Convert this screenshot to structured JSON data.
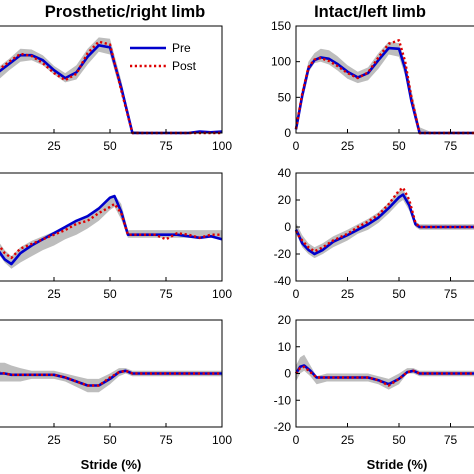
{
  "chart_data": [
    {
      "type": "line",
      "title": "Prosthetic/right limb",
      "xlabel": "",
      "ylabel": "",
      "xlim": [
        0,
        100
      ],
      "ylim": [
        0,
        150
      ],
      "xticks": [
        25,
        50,
        75,
        100
      ],
      "yticks": [],
      "legend": {
        "placement": "top-right",
        "entries": [
          "Pre",
          "Post"
        ]
      },
      "band": {
        "x": [
          0,
          5,
          10,
          15,
          20,
          25,
          30,
          35,
          40,
          45,
          50,
          55,
          60,
          65,
          70,
          75,
          80,
          85,
          90,
          95,
          100
        ],
        "lower": [
          74,
          88,
          100,
          102,
          95,
          82,
          71,
          75,
          96,
          114,
          110,
          55,
          0,
          0,
          0,
          0,
          0,
          0,
          0,
          0,
          0
        ],
        "upper": [
          92,
          104,
          118,
          117,
          109,
          94,
          84,
          95,
          118,
          134,
          132,
          74,
          3,
          2,
          2,
          2,
          2,
          2,
          2,
          2,
          2
        ]
      },
      "series": [
        {
          "name": "Pre",
          "x": [
            0,
            5,
            10,
            15,
            20,
            25,
            30,
            35,
            40,
            45,
            50,
            55,
            60,
            65,
            70,
            75,
            80,
            85,
            90,
            95,
            100
          ],
          "values": [
            85,
            97,
            109,
            109,
            102,
            88,
            77,
            85,
            107,
            123,
            120,
            64,
            0,
            0,
            0,
            0,
            0,
            0,
            2,
            1,
            2
          ]
        },
        {
          "name": "Post",
          "x": [
            0,
            5,
            10,
            15,
            20,
            25,
            30,
            35,
            40,
            45,
            50,
            55,
            60,
            65,
            70,
            75,
            80,
            85,
            90,
            95,
            100
          ],
          "values": [
            88,
            100,
            111,
            108,
            98,
            84,
            74,
            83,
            112,
            128,
            124,
            60,
            0,
            0,
            0,
            0,
            0,
            0,
            0,
            0,
            0
          ]
        }
      ]
    },
    {
      "type": "line",
      "title": "Intact/left limb",
      "xlabel": "",
      "ylabel": "",
      "xlim": [
        0,
        100
      ],
      "ylim": [
        0,
        150
      ],
      "xticks": [
        0,
        25,
        50,
        75
      ],
      "yticks": [
        0,
        50,
        100,
        150
      ],
      "band": {
        "x": [
          0,
          3,
          6,
          9,
          12,
          16,
          20,
          25,
          30,
          35,
          40,
          45,
          50,
          53,
          56,
          60,
          65,
          70,
          75,
          80,
          85,
          90,
          95,
          100
        ],
        "lower": [
          3,
          45,
          85,
          98,
          100,
          96,
          88,
          76,
          70,
          74,
          90,
          110,
          107,
          80,
          40,
          0,
          0,
          0,
          0,
          0,
          0,
          0,
          0,
          0
        ],
        "upper": [
          12,
          62,
          100,
          112,
          118,
          116,
          108,
          95,
          86,
          92,
          112,
          128,
          126,
          100,
          60,
          8,
          2,
          2,
          2,
          2,
          2,
          2,
          2,
          2
        ]
      },
      "series": [
        {
          "name": "Pre",
          "x": [
            0,
            3,
            6,
            9,
            12,
            16,
            20,
            25,
            30,
            35,
            40,
            45,
            50,
            53,
            56,
            60,
            65,
            70,
            75,
            80,
            85,
            90,
            95,
            100
          ],
          "values": [
            5,
            52,
            90,
            102,
            106,
            104,
            97,
            86,
            78,
            84,
            102,
            119,
            118,
            90,
            45,
            0,
            0,
            0,
            0,
            0,
            0,
            0,
            0,
            0
          ]
        },
        {
          "name": "Post",
          "x": [
            0,
            3,
            6,
            9,
            12,
            16,
            20,
            25,
            30,
            35,
            40,
            45,
            50,
            53,
            56,
            60,
            65,
            70,
            75,
            80,
            85,
            90,
            95,
            100
          ],
          "values": [
            6,
            55,
            92,
            103,
            105,
            101,
            94,
            84,
            77,
            85,
            106,
            125,
            130,
            100,
            50,
            0,
            0,
            0,
            0,
            0,
            0,
            0,
            0,
            0
          ]
        }
      ]
    },
    {
      "type": "line",
      "title": "",
      "xlabel": "",
      "ylabel": "",
      "xlim": [
        0,
        100
      ],
      "ylim": [
        -30,
        40
      ],
      "xticks": [
        25,
        50,
        75,
        100
      ],
      "yticks": [],
      "band": {
        "x": [
          0,
          3,
          6,
          10,
          15,
          20,
          25,
          30,
          35,
          40,
          45,
          50,
          52,
          55,
          58,
          60,
          65,
          70,
          75,
          80,
          85,
          90,
          95,
          100
        ],
        "lower": [
          -12,
          -18,
          -22,
          -18,
          -14,
          -10,
          -7,
          -3,
          0,
          4,
          9,
          16,
          18,
          10,
          -2,
          -2,
          -2,
          -2,
          -2,
          -2,
          -2,
          -2,
          -2,
          -2
        ],
        "upper": [
          -4,
          -10,
          -14,
          -8,
          -4,
          -1,
          2,
          5,
          9,
          13,
          18,
          25,
          26,
          20,
          3,
          3,
          3,
          3,
          3,
          3,
          3,
          3,
          3,
          3
        ]
      },
      "series": [
        {
          "name": "Pre",
          "x": [
            0,
            3,
            6,
            10,
            15,
            20,
            25,
            30,
            35,
            40,
            45,
            50,
            52,
            55,
            58,
            60,
            65,
            70,
            75,
            80,
            85,
            90,
            95,
            100
          ],
          "values": [
            -10,
            -16,
            -19,
            -12,
            -7,
            -3,
            1,
            5,
            9,
            12,
            17,
            24,
            25,
            15,
            0,
            0,
            0,
            0,
            0,
            0,
            -1,
            -2,
            -1,
            -3
          ]
        },
        {
          "name": "Post",
          "x": [
            0,
            3,
            6,
            10,
            15,
            20,
            25,
            30,
            35,
            40,
            45,
            50,
            52,
            55,
            58,
            60,
            65,
            70,
            75,
            80,
            85,
            90,
            95,
            100
          ],
          "values": [
            -6,
            -12,
            -15,
            -9,
            -6,
            -3,
            0,
            3,
            7,
            9,
            14,
            18,
            20,
            14,
            0,
            0,
            0,
            0,
            -3,
            1,
            0,
            -2,
            0,
            0
          ]
        }
      ]
    },
    {
      "type": "line",
      "title": "",
      "xlabel": "",
      "ylabel": "",
      "xlim": [
        0,
        100
      ],
      "ylim": [
        -40,
        40
      ],
      "xticks": [
        0,
        25,
        50,
        75
      ],
      "yticks": [
        -40,
        -20,
        0,
        20,
        40
      ],
      "band": {
        "x": [
          0,
          1,
          3,
          6,
          9,
          13,
          18,
          25,
          30,
          35,
          40,
          45,
          50,
          52,
          55,
          58,
          60,
          65,
          70,
          75,
          80,
          85,
          90,
          95,
          100
        ],
        "lower": [
          -5,
          -8,
          -15,
          -20,
          -23,
          -20,
          -15,
          -10,
          -5,
          -2,
          3,
          10,
          18,
          20,
          12,
          0,
          -2,
          -2,
          -2,
          -2,
          -2,
          -2,
          -2,
          -2,
          -2
        ],
        "upper": [
          3,
          0,
          -6,
          -12,
          -15,
          -12,
          -7,
          -2,
          2,
          6,
          11,
          18,
          27,
          28,
          20,
          4,
          2,
          2,
          2,
          2,
          2,
          2,
          2,
          2,
          2
        ]
      },
      "series": [
        {
          "name": "Pre",
          "x": [
            0,
            1,
            3,
            6,
            9,
            13,
            18,
            25,
            30,
            35,
            40,
            45,
            50,
            52,
            55,
            58,
            60,
            65,
            70,
            75,
            80,
            85,
            90,
            95,
            100
          ],
          "values": [
            -2,
            -5,
            -12,
            -17,
            -20,
            -17,
            -11,
            -6,
            -2,
            2,
            7,
            14,
            22,
            24,
            16,
            2,
            0,
            0,
            0,
            0,
            0,
            0,
            0,
            0,
            0
          ]
        },
        {
          "name": "Post",
          "x": [
            0,
            1,
            3,
            6,
            9,
            13,
            18,
            25,
            30,
            35,
            40,
            45,
            50,
            52,
            55,
            58,
            60,
            65,
            70,
            75,
            80,
            85,
            90,
            95,
            100
          ],
          "values": [
            -3,
            -6,
            -10,
            -15,
            -18,
            -15,
            -10,
            -5,
            0,
            4,
            9,
            17,
            27,
            29,
            20,
            3,
            0,
            0,
            0,
            0,
            0,
            0,
            0,
            0,
            0
          ]
        }
      ]
    },
    {
      "type": "line",
      "title": "",
      "xlabel": "Stride (%)",
      "ylabel": "",
      "xlim": [
        0,
        100
      ],
      "ylim": [
        -20,
        20
      ],
      "xticks": [
        25,
        50,
        75,
        100
      ],
      "yticks": [],
      "band": {
        "x": [
          0,
          3,
          6,
          10,
          15,
          20,
          25,
          30,
          35,
          40,
          45,
          50,
          54,
          57,
          60,
          65,
          70,
          75,
          80,
          85,
          90,
          95,
          100
        ],
        "lower": [
          -3,
          -3,
          -3,
          -3,
          -2,
          -2,
          -2,
          -3,
          -5,
          -7,
          -7,
          -4,
          -1,
          0,
          -1,
          -1,
          -1,
          -1,
          -1,
          -1,
          -1,
          -1,
          -1
        ],
        "upper": [
          4,
          4,
          3,
          2,
          1,
          1,
          1,
          0,
          -1,
          -2,
          -2,
          0,
          2,
          2,
          1,
          1,
          1,
          1,
          1,
          1,
          1,
          1,
          1
        ]
      },
      "series": [
        {
          "name": "Pre",
          "x": [
            0,
            3,
            6,
            10,
            15,
            20,
            25,
            30,
            35,
            40,
            45,
            50,
            54,
            57,
            60,
            65,
            70,
            75,
            80,
            85,
            90,
            95,
            100
          ],
          "values": [
            0,
            0,
            -0.5,
            -0.5,
            -0.5,
            -0.5,
            -0.5,
            -1.5,
            -3,
            -4.5,
            -4.5,
            -2,
            0.5,
            1,
            0,
            0,
            0,
            0,
            0,
            0,
            0,
            0,
            0
          ]
        },
        {
          "name": "Post",
          "x": [
            0,
            3,
            6,
            10,
            15,
            20,
            25,
            30,
            35,
            40,
            45,
            50,
            54,
            57,
            60,
            65,
            70,
            75,
            80,
            85,
            90,
            95,
            100
          ],
          "values": [
            0.5,
            0,
            -0.5,
            -0.5,
            -0.5,
            -0.5,
            -0.5,
            -1.5,
            -3,
            -4.5,
            -4.5,
            -1.5,
            0.5,
            1,
            0,
            0,
            0,
            0,
            0,
            0,
            0,
            0,
            0
          ]
        }
      ]
    },
    {
      "type": "line",
      "title": "",
      "xlabel": "Stride (%)",
      "ylabel": "",
      "xlim": [
        0,
        100
      ],
      "ylim": [
        -20,
        20
      ],
      "xticks": [
        0,
        25,
        50,
        75
      ],
      "yticks": [
        -20,
        -10,
        0,
        10,
        20
      ],
      "band": {
        "x": [
          0,
          2,
          4,
          7,
          10,
          15,
          20,
          25,
          30,
          35,
          40,
          45,
          50,
          54,
          57,
          60,
          65,
          70,
          75,
          80,
          85,
          90,
          95,
          100
        ],
        "lower": [
          -3,
          0,
          1,
          -1,
          -4,
          -3,
          -3,
          -3,
          -3,
          -3,
          -4,
          -6,
          -4,
          0,
          0,
          -1,
          -1,
          -1,
          -1,
          -1,
          -1,
          -1,
          -1,
          -1
        ],
        "upper": [
          3,
          6,
          7,
          3,
          -1,
          0,
          0,
          0,
          0,
          0,
          -1,
          -2,
          0,
          2,
          2,
          1,
          1,
          1,
          1,
          1,
          1,
          1,
          1,
          1
        ]
      },
      "series": [
        {
          "name": "Pre",
          "x": [
            0,
            2,
            4,
            7,
            10,
            15,
            20,
            25,
            30,
            35,
            40,
            45,
            50,
            54,
            57,
            60,
            65,
            70,
            75,
            80,
            85,
            90,
            95,
            100
          ],
          "values": [
            0,
            2.5,
            3,
            1,
            -1.5,
            -1.5,
            -1.5,
            -1.5,
            -1.5,
            -1.5,
            -2.5,
            -4,
            -2,
            0.5,
            1,
            0,
            0,
            0,
            0,
            0,
            0,
            0,
            0,
            0
          ]
        },
        {
          "name": "Post",
          "x": [
            0,
            2,
            4,
            7,
            10,
            15,
            20,
            25,
            30,
            35,
            40,
            45,
            50,
            54,
            57,
            60,
            65,
            70,
            75,
            80,
            85,
            90,
            95,
            100
          ],
          "values": [
            0,
            2,
            2.5,
            0.5,
            -1.5,
            -1.5,
            -1.5,
            -1.5,
            -1.5,
            -1.5,
            -2.5,
            -4.5,
            -2,
            0.5,
            1,
            0,
            0,
            0,
            0,
            0,
            0,
            0,
            0,
            0
          ]
        }
      ]
    }
  ],
  "colors": {
    "pre": "#0000cc",
    "post": "#dd0000",
    "band": "#bdbdbd"
  }
}
